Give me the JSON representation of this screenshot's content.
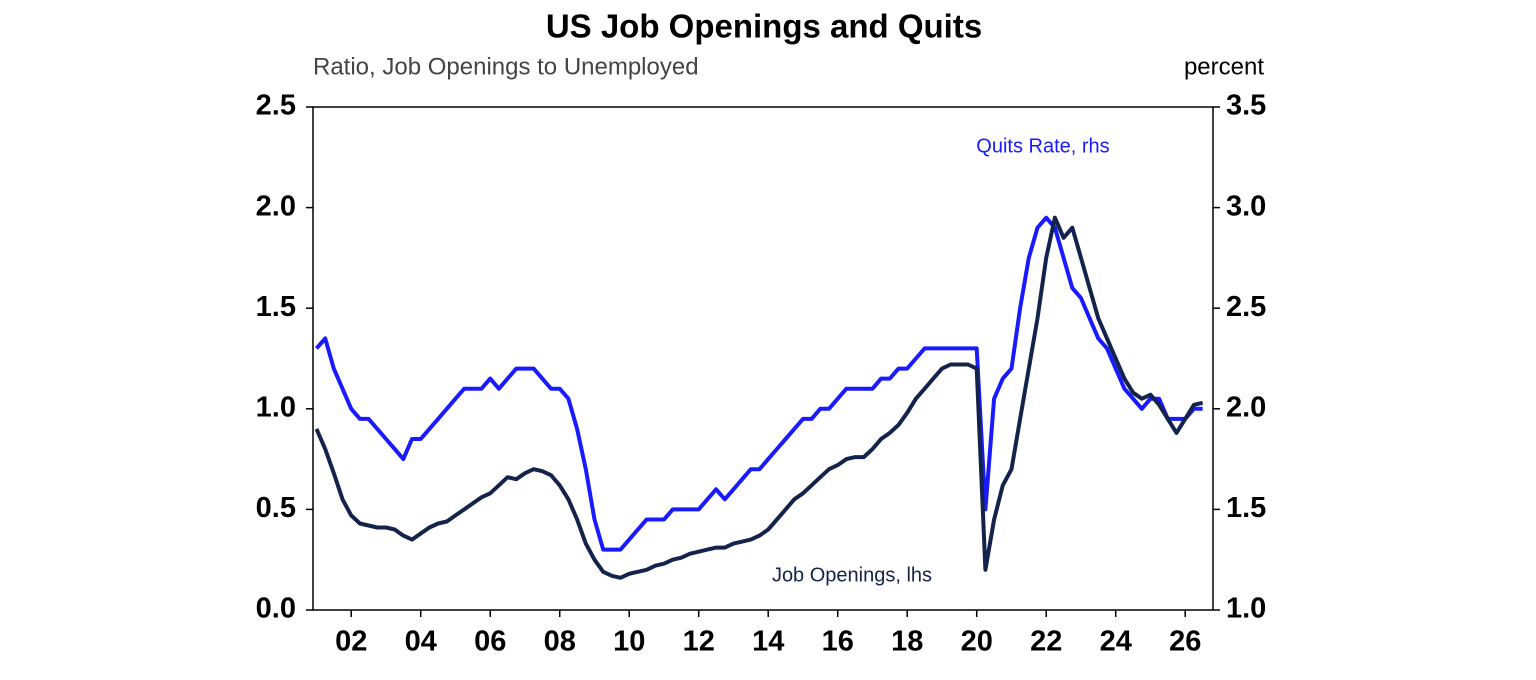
{
  "chart_data": {
    "type": "line",
    "title": "US Job Openings and Quits",
    "y_axis_label": "Ratio, Job Openings to Unemployed",
    "y2_axis_label": "percent",
    "x": [
      2001,
      2001.25,
      2001.5,
      2001.75,
      2002,
      2002.25,
      2002.5,
      2002.75,
      2003,
      2003.25,
      2003.5,
      2003.75,
      2004,
      2004.25,
      2004.5,
      2004.75,
      2005,
      2005.25,
      2005.5,
      2005.75,
      2006,
      2006.25,
      2006.5,
      2006.75,
      2007,
      2007.25,
      2007.5,
      2007.75,
      2008,
      2008.25,
      2008.5,
      2008.75,
      2009,
      2009.25,
      2009.5,
      2009.75,
      2010,
      2010.25,
      2010.5,
      2010.75,
      2011,
      2011.25,
      2011.5,
      2011.75,
      2012,
      2012.25,
      2012.5,
      2012.75,
      2013,
      2013.25,
      2013.5,
      2013.75,
      2014,
      2014.25,
      2014.5,
      2014.75,
      2015,
      2015.25,
      2015.5,
      2015.75,
      2016,
      2016.25,
      2016.5,
      2016.75,
      2017,
      2017.25,
      2017.5,
      2017.75,
      2018,
      2018.25,
      2018.5,
      2018.75,
      2019,
      2019.25,
      2019.5,
      2019.75,
      2020,
      2020.25,
      2020.5,
      2020.75,
      2021,
      2021.25,
      2021.5,
      2021.75,
      2022,
      2022.25,
      2022.5,
      2022.75,
      2023,
      2023.25,
      2023.5,
      2023.75,
      2024,
      2024.25,
      2024.5,
      2024.75,
      2025,
      2025.25,
      2025.5,
      2025.75,
      2026,
      2026.25,
      2026.5
    ],
    "series": [
      {
        "name": "Job Openings, lhs",
        "color": "#14234b",
        "axis": "y",
        "values": [
          0.9,
          0.8,
          0.68,
          0.55,
          0.47,
          0.43,
          0.42,
          0.41,
          0.41,
          0.4,
          0.37,
          0.35,
          0.38,
          0.41,
          0.43,
          0.44,
          0.47,
          0.5,
          0.53,
          0.56,
          0.58,
          0.62,
          0.66,
          0.65,
          0.68,
          0.7,
          0.69,
          0.67,
          0.62,
          0.55,
          0.45,
          0.33,
          0.25,
          0.19,
          0.17,
          0.16,
          0.18,
          0.19,
          0.2,
          0.22,
          0.23,
          0.25,
          0.26,
          0.28,
          0.29,
          0.3,
          0.31,
          0.31,
          0.33,
          0.34,
          0.35,
          0.37,
          0.4,
          0.45,
          0.5,
          0.55,
          0.58,
          0.62,
          0.66,
          0.7,
          0.72,
          0.75,
          0.76,
          0.76,
          0.8,
          0.85,
          0.88,
          0.92,
          0.98,
          1.05,
          1.1,
          1.15,
          1.2,
          1.22,
          1.22,
          1.22,
          1.2,
          0.2,
          0.45,
          0.62,
          0.7,
          0.95,
          1.2,
          1.45,
          1.75,
          1.95,
          1.85,
          1.9,
          1.75,
          1.6,
          1.45,
          1.35,
          1.25,
          1.15,
          1.08,
          1.05,
          1.07,
          1.02,
          0.95,
          0.88,
          0.95,
          1.02,
          1.03
        ]
      },
      {
        "name": "Quits Rate, rhs",
        "color": "#1a1aff",
        "axis": "y2",
        "values": [
          2.3,
          2.35,
          2.2,
          2.1,
          2.0,
          1.95,
          1.95,
          1.9,
          1.85,
          1.8,
          1.75,
          1.85,
          1.85,
          1.9,
          1.95,
          2.0,
          2.05,
          2.1,
          2.1,
          2.1,
          2.15,
          2.1,
          2.15,
          2.2,
          2.2,
          2.2,
          2.15,
          2.1,
          2.1,
          2.05,
          1.9,
          1.7,
          1.45,
          1.3,
          1.3,
          1.3,
          1.35,
          1.4,
          1.45,
          1.45,
          1.45,
          1.5,
          1.5,
          1.5,
          1.5,
          1.55,
          1.6,
          1.55,
          1.6,
          1.65,
          1.7,
          1.7,
          1.75,
          1.8,
          1.85,
          1.9,
          1.95,
          1.95,
          2.0,
          2.0,
          2.05,
          2.1,
          2.1,
          2.1,
          2.1,
          2.15,
          2.15,
          2.2,
          2.2,
          2.25,
          2.3,
          2.3,
          2.3,
          2.3,
          2.3,
          2.3,
          2.3,
          1.5,
          2.05,
          2.15,
          2.2,
          2.5,
          2.75,
          2.9,
          2.95,
          2.9,
          2.75,
          2.6,
          2.55,
          2.45,
          2.35,
          2.3,
          2.2,
          2.1,
          2.05,
          2.0,
          2.05,
          2.05,
          1.95,
          1.95,
          1.95,
          2.0,
          2.0
        ]
      }
    ],
    "xlim": [
      2000.9,
      2026.8
    ],
    "xticks": [
      {
        "value": 2002,
        "label": "02"
      },
      {
        "value": 2004,
        "label": "04"
      },
      {
        "value": 2006,
        "label": "06"
      },
      {
        "value": 2008,
        "label": "08"
      },
      {
        "value": 2010,
        "label": "10"
      },
      {
        "value": 2012,
        "label": "12"
      },
      {
        "value": 2014,
        "label": "14"
      },
      {
        "value": 2016,
        "label": "16"
      },
      {
        "value": 2018,
        "label": "18"
      },
      {
        "value": 2020,
        "label": "20"
      },
      {
        "value": 2022,
        "label": "22"
      },
      {
        "value": 2024,
        "label": "24"
      },
      {
        "value": 2026,
        "label": "26"
      }
    ],
    "ylim": [
      0,
      2.5
    ],
    "yticks": [
      {
        "value": 0,
        "label": "0.0"
      },
      0.5,
      {
        "value": 1,
        "label": "1.0"
      },
      1.5,
      {
        "value": 2,
        "label": "2.0"
      },
      2.5
    ],
    "y2lim": [
      1,
      3.5
    ],
    "y2ticks": [
      {
        "value": 1,
        "label": "1.0"
      },
      1.5,
      {
        "value": 2,
        "label": "2.0"
      },
      2.5,
      {
        "value": 3,
        "label": "3.0"
      },
      3.5
    ],
    "grid": false
  }
}
